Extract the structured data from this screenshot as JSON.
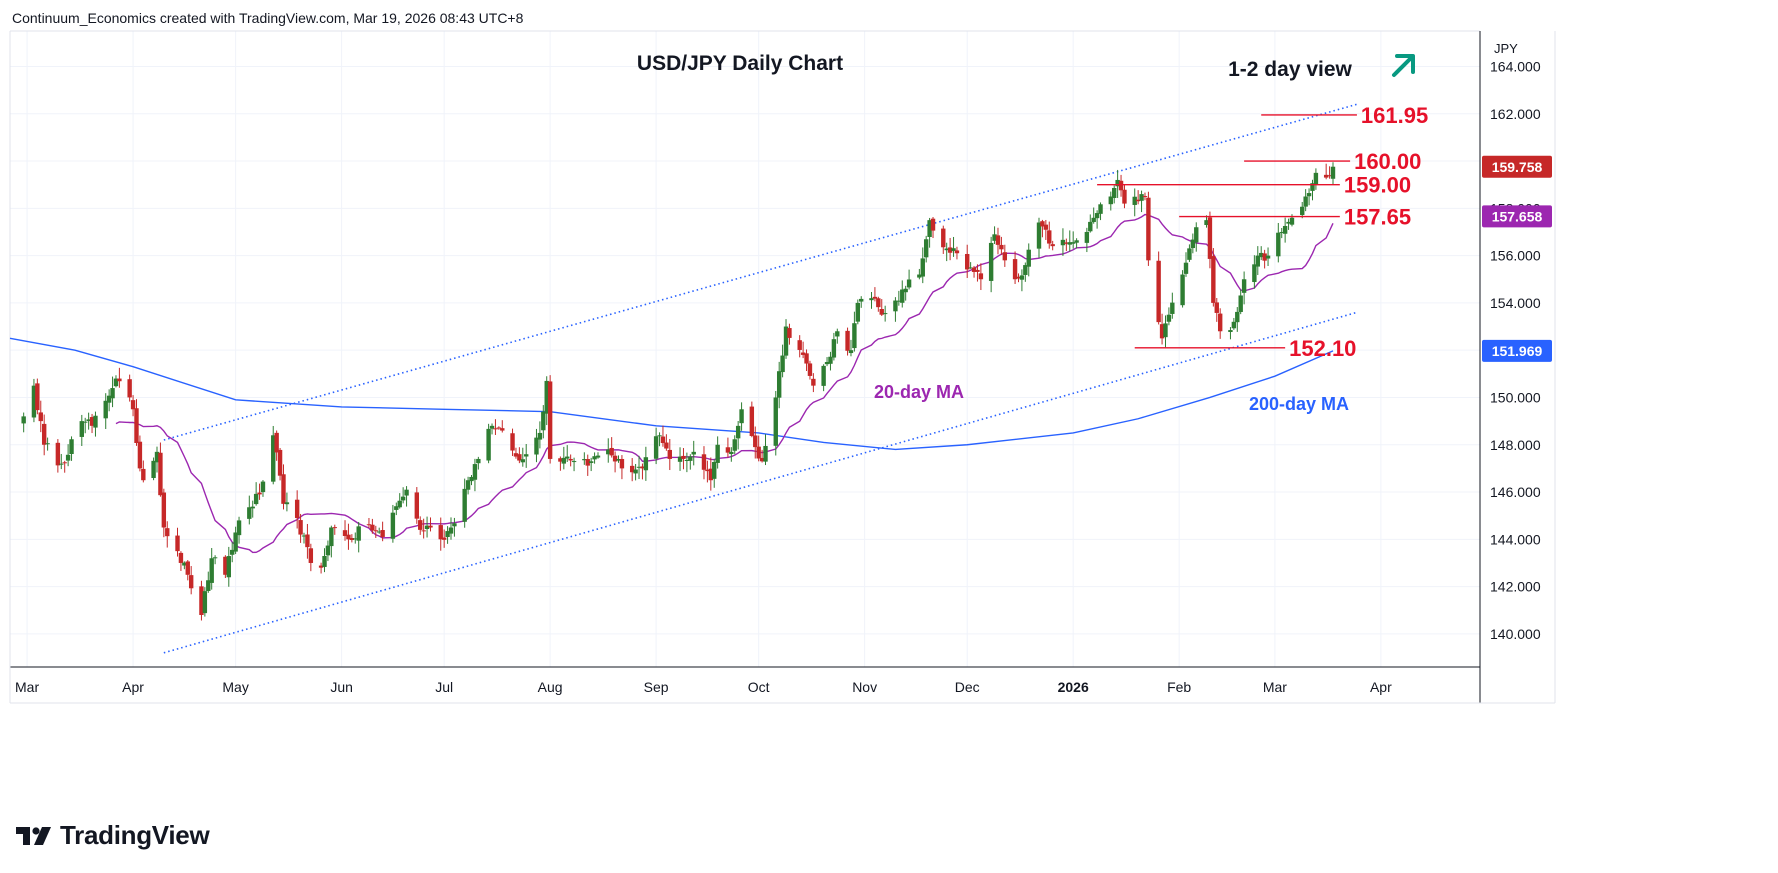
{
  "header": {
    "attribution": "Continuum_Economics created with TradingView.com, Mar 19, 2026 08:43 UTC+8"
  },
  "footer": {
    "brand": "TradingView"
  },
  "colors": {
    "up": "#26a69a",
    "down": "#ef5350",
    "upBody": "#2e7d32",
    "downBody": "#c62828",
    "ma20": "#9c27b0",
    "ma200": "#2962ff",
    "channel": "#2962ff",
    "level": "#e6112a",
    "arrow": "#089981",
    "grid": "#f0f3fa"
  },
  "chart_data": {
    "type": "candlestick",
    "title": "USD/JPY Daily Chart",
    "view_label": "1-2 day view",
    "view_icon": "arrow-up-right-icon",
    "currency": "JPY",
    "ylim": [
      138.6,
      165.5
    ],
    "y_ticks": [
      "164.000",
      "162.000",
      "160.000",
      "158.000",
      "156.000",
      "154.000",
      "152.000",
      "150.000",
      "148.000",
      "146.000",
      "144.000",
      "142.000",
      "140.000"
    ],
    "x_ticks": [
      "Mar",
      "Apr",
      "May",
      "Jun",
      "Jul",
      "Aug",
      "Sep",
      "Oct",
      "Nov",
      "Dec",
      "2026",
      "Feb",
      "Mar",
      "Apr"
    ],
    "price_labels": {
      "last": "159.758",
      "ma20": "157.658",
      "ma200": "151.969"
    },
    "levels": [
      {
        "label": "161.95",
        "value": 161.95
      },
      {
        "label": "160.00",
        "value": 160.0
      },
      {
        "label": "159.00",
        "value": 159.0
      },
      {
        "label": "157.65",
        "value": 157.65
      },
      {
        "label": "152.10",
        "value": 152.1
      }
    ],
    "annotations": {
      "ma20": "20-day MA",
      "ma200": "200-day MA"
    },
    "anchors": [
      [
        "2025-02-28",
        149.2
      ],
      [
        "2025-03-03",
        150.5
      ],
      [
        "2025-03-06",
        148.0
      ],
      [
        "2025-03-11",
        147.2
      ],
      [
        "2025-03-17",
        149.0
      ],
      [
        "2025-03-20",
        148.8
      ],
      [
        "2025-03-27",
        150.8
      ],
      [
        "2025-04-01",
        149.5
      ],
      [
        "2025-04-03",
        147.0
      ],
      [
        "2025-04-04",
        146.5
      ],
      [
        "2025-04-08",
        147.7
      ],
      [
        "2025-04-10",
        144.5
      ],
      [
        "2025-04-14",
        143.5
      ],
      [
        "2025-04-17",
        142.5
      ],
      [
        "2025-04-21",
        140.8
      ],
      [
        "2025-04-24",
        143.2
      ],
      [
        "2025-04-28",
        142.5
      ],
      [
        "2025-05-02",
        144.8
      ],
      [
        "2025-05-08",
        145.9
      ],
      [
        "2025-05-12",
        148.4
      ],
      [
        "2025-05-15",
        145.5
      ],
      [
        "2025-05-19",
        144.9
      ],
      [
        "2025-05-23",
        143.0
      ],
      [
        "2025-05-26",
        142.8
      ],
      [
        "2025-05-29",
        144.5
      ],
      [
        "2025-06-03",
        144.0
      ],
      [
        "2025-06-09",
        144.6
      ],
      [
        "2025-06-13",
        144.1
      ],
      [
        "2025-06-17",
        145.4
      ],
      [
        "2025-06-20",
        146.1
      ],
      [
        "2025-06-24",
        144.4
      ],
      [
        "2025-06-27",
        144.5
      ],
      [
        "2025-06-30",
        144.0
      ],
      [
        "2025-07-03",
        144.5
      ],
      [
        "2025-07-08",
        146.5
      ],
      [
        "2025-07-11",
        147.4
      ],
      [
        "2025-07-15",
        148.8
      ],
      [
        "2025-07-18",
        148.6
      ],
      [
        "2025-07-22",
        147.5
      ],
      [
        "2025-07-25",
        147.6
      ],
      [
        "2025-07-29",
        148.5
      ],
      [
        "2025-07-31",
        150.7
      ],
      [
        "2025-08-01",
        147.4
      ],
      [
        "2025-08-06",
        147.5
      ],
      [
        "2025-08-13",
        147.3
      ],
      [
        "2025-08-18",
        147.8
      ],
      [
        "2025-08-22",
        147.0
      ],
      [
        "2025-08-28",
        147.0
      ],
      [
        "2025-09-02",
        148.4
      ],
      [
        "2025-09-05",
        147.4
      ],
      [
        "2025-09-09",
        147.4
      ],
      [
        "2025-09-12",
        147.7
      ],
      [
        "2025-09-17",
        146.5
      ],
      [
        "2025-09-19",
        148.0
      ],
      [
        "2025-09-23",
        147.7
      ],
      [
        "2025-09-26",
        149.5
      ],
      [
        "2025-09-30",
        147.9
      ],
      [
        "2025-10-02",
        147.3
      ],
      [
        "2025-10-06",
        150.0
      ],
      [
        "2025-10-09",
        153.0
      ],
      [
        "2025-10-14",
        151.8
      ],
      [
        "2025-10-17",
        150.5
      ],
      [
        "2025-10-21",
        151.5
      ],
      [
        "2025-10-24",
        152.8
      ],
      [
        "2025-10-28",
        152.0
      ],
      [
        "2025-10-30",
        154.0
      ],
      [
        "2025-11-03",
        154.2
      ],
      [
        "2025-11-06",
        153.5
      ],
      [
        "2025-11-10",
        154.1
      ],
      [
        "2025-11-13",
        154.6
      ],
      [
        "2025-11-17",
        155.2
      ],
      [
        "2025-11-20",
        157.5
      ],
      [
        "2025-11-25",
        156.3
      ],
      [
        "2025-11-28",
        156.1
      ],
      [
        "2025-12-02",
        155.5
      ],
      [
        "2025-12-05",
        155.0
      ],
      [
        "2025-12-09",
        156.9
      ],
      [
        "2025-12-12",
        155.8
      ],
      [
        "2025-12-15",
        155.0
      ],
      [
        "2025-12-18",
        155.6
      ],
      [
        "2025-12-22",
        157.4
      ],
      [
        "2025-12-26",
        156.4
      ],
      [
        "2025-12-30",
        156.5
      ],
      [
        "2026-01-05",
        157.0
      ],
      [
        "2026-01-08",
        157.8
      ],
      [
        "2026-01-12",
        158.5
      ],
      [
        "2026-01-14",
        159.2
      ],
      [
        "2026-01-16",
        158.2
      ],
      [
        "2026-01-20",
        158.3
      ],
      [
        "2026-01-22",
        158.5
      ],
      [
        "2026-01-23",
        155.8
      ],
      [
        "2026-01-27",
        152.5
      ],
      [
        "2026-01-29",
        153.5
      ],
      [
        "2026-02-02",
        155.2
      ],
      [
        "2026-02-06",
        157.2
      ],
      [
        "2026-02-09",
        157.5
      ],
      [
        "2026-02-11",
        154.0
      ],
      [
        "2026-02-13",
        152.8
      ],
      [
        "2026-02-17",
        153.2
      ],
      [
        "2026-02-20",
        155.0
      ],
      [
        "2026-02-24",
        156.0
      ],
      [
        "2026-02-27",
        156.0
      ],
      [
        "2026-03-03",
        157.0
      ],
      [
        "2026-03-06",
        157.6
      ],
      [
        "2026-03-10",
        158.5
      ],
      [
        "2026-03-13",
        159.5
      ],
      [
        "2026-03-16",
        159.3
      ],
      [
        "2026-03-18",
        159.76
      ]
    ],
    "ma200_points": [
      [
        "2025-02-24",
        152.5
      ],
      [
        "2025-03-15",
        152.0
      ],
      [
        "2025-04-01",
        151.3
      ],
      [
        "2025-05-01",
        149.9
      ],
      [
        "2025-06-01",
        149.6
      ],
      [
        "2025-07-01",
        149.5
      ],
      [
        "2025-08-01",
        149.4
      ],
      [
        "2025-09-01",
        148.8
      ],
      [
        "2025-10-01",
        148.5
      ],
      [
        "2025-10-20",
        148.1
      ],
      [
        "2025-11-10",
        147.8
      ],
      [
        "2025-12-01",
        148.0
      ],
      [
        "2026-01-01",
        148.5
      ],
      [
        "2026-01-20",
        149.1
      ],
      [
        "2026-02-10",
        150.0
      ],
      [
        "2026-03-01",
        150.9
      ],
      [
        "2026-03-18",
        151.97
      ]
    ],
    "channel": {
      "upper": [
        [
          "2025-04-10",
          148.2
        ],
        [
          "2026-03-25",
          162.4
        ]
      ],
      "lower": [
        [
          "2025-04-10",
          139.2
        ],
        [
          "2026-03-25",
          153.6
        ]
      ]
    }
  }
}
